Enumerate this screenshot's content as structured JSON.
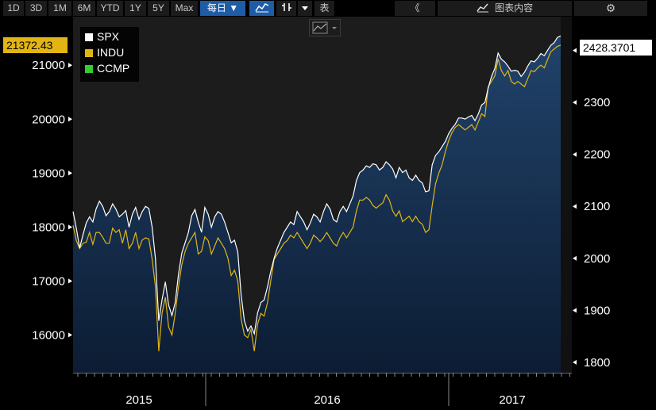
{
  "toolbar": {
    "ranges": [
      "1D",
      "3D",
      "1M",
      "6M",
      "YTD",
      "1Y",
      "5Y",
      "Max"
    ],
    "frequency": "每日 ▼",
    "table_label": "表",
    "collapse_label": "《",
    "chart_content_label": "图表内容"
  },
  "tags": {
    "left_value": "21372.43",
    "right_value": "2428.3701"
  },
  "colors": {
    "spx": "#ffffff",
    "indu": "#e3b512",
    "ccmp": "#33cc33",
    "fill_top": "#21436b",
    "fill_bottom": "#0c1c33",
    "plot_bg": "#1c1c1c",
    "accent": "#1f5ca8"
  },
  "chart_data": {
    "type": "line",
    "x_labels": [
      "2015",
      "2016",
      "2017"
    ],
    "left_axis": {
      "ticks": [
        16000,
        17000,
        18000,
        19000,
        20000,
        21000
      ],
      "range": [
        15300,
        21900
      ]
    },
    "right_axis": {
      "ticks": [
        1800,
        1900,
        2000,
        2100,
        2200,
        2300,
        2400
      ],
      "range": [
        1780,
        2465
      ]
    },
    "legend": [
      "SPX",
      "INDU",
      "CCMP"
    ],
    "series": [
      {
        "name": "SPX",
        "axis": "right",
        "values": [
          [
            0,
            2090
          ],
          [
            2,
            2058
          ],
          [
            4,
            2020
          ],
          [
            6,
            2045
          ],
          [
            8,
            2068
          ],
          [
            10,
            2080
          ],
          [
            12,
            2070
          ],
          [
            14,
            2095
          ],
          [
            16,
            2110
          ],
          [
            18,
            2100
          ],
          [
            20,
            2082
          ],
          [
            22,
            2090
          ],
          [
            24,
            2105
          ],
          [
            26,
            2095
          ],
          [
            28,
            2080
          ],
          [
            30,
            2085
          ],
          [
            32,
            2092
          ],
          [
            34,
            2060
          ],
          [
            36,
            2085
          ],
          [
            38,
            2098
          ],
          [
            40,
            2075
          ],
          [
            42,
            2090
          ],
          [
            44,
            2100
          ],
          [
            46,
            2096
          ],
          [
            48,
            2060
          ],
          [
            50,
            2000
          ],
          [
            52,
            1880
          ],
          [
            54,
            1920
          ],
          [
            56,
            1955
          ],
          [
            58,
            1910
          ],
          [
            60,
            1890
          ],
          [
            62,
            1915
          ],
          [
            64,
            1970
          ],
          [
            66,
            2010
          ],
          [
            68,
            2030
          ],
          [
            70,
            2050
          ],
          [
            72,
            2082
          ],
          [
            74,
            2094
          ],
          [
            76,
            2070
          ],
          [
            78,
            2050
          ],
          [
            80,
            2098
          ],
          [
            82,
            2085
          ],
          [
            84,
            2060
          ],
          [
            86,
            2080
          ],
          [
            88,
            2090
          ],
          [
            90,
            2085
          ],
          [
            92,
            2070
          ],
          [
            94,
            2050
          ],
          [
            96,
            2030
          ],
          [
            98,
            2035
          ],
          [
            100,
            2012
          ],
          [
            102,
            1930
          ],
          [
            104,
            1880
          ],
          [
            106,
            1860
          ],
          [
            108,
            1870
          ],
          [
            110,
            1855
          ],
          [
            112,
            1895
          ],
          [
            114,
            1915
          ],
          [
            116,
            1920
          ],
          [
            118,
            1945
          ],
          [
            120,
            1975
          ],
          [
            122,
            2000
          ],
          [
            124,
            2020
          ],
          [
            126,
            2035
          ],
          [
            128,
            2050
          ],
          [
            130,
            2060
          ],
          [
            132,
            2070
          ],
          [
            134,
            2065
          ],
          [
            136,
            2090
          ],
          [
            138,
            2080
          ],
          [
            140,
            2070
          ],
          [
            142,
            2055
          ],
          [
            144,
            2068
          ],
          [
            146,
            2085
          ],
          [
            148,
            2080
          ],
          [
            150,
            2070
          ],
          [
            152,
            2090
          ],
          [
            154,
            2105
          ],
          [
            156,
            2095
          ],
          [
            158,
            2075
          ],
          [
            160,
            2070
          ],
          [
            162,
            2090
          ],
          [
            164,
            2100
          ],
          [
            166,
            2090
          ],
          [
            168,
            2105
          ],
          [
            170,
            2120
          ],
          [
            172,
            2150
          ],
          [
            174,
            2165
          ],
          [
            176,
            2170
          ],
          [
            178,
            2178
          ],
          [
            180,
            2175
          ],
          [
            182,
            2182
          ],
          [
            184,
            2180
          ],
          [
            186,
            2170
          ],
          [
            188,
            2175
          ],
          [
            190,
            2186
          ],
          [
            192,
            2180
          ],
          [
            194,
            2172
          ],
          [
            196,
            2155
          ],
          [
            198,
            2175
          ],
          [
            200,
            2165
          ],
          [
            202,
            2170
          ],
          [
            204,
            2155
          ],
          [
            206,
            2150
          ],
          [
            208,
            2160
          ],
          [
            210,
            2150
          ],
          [
            212,
            2145
          ],
          [
            214,
            2128
          ],
          [
            216,
            2130
          ],
          [
            218,
            2180
          ],
          [
            220,
            2198
          ],
          [
            222,
            2205
          ],
          [
            224,
            2215
          ],
          [
            226,
            2225
          ],
          [
            228,
            2240
          ],
          [
            230,
            2250
          ],
          [
            232,
            2258
          ],
          [
            234,
            2270
          ],
          [
            236,
            2270
          ],
          [
            238,
            2268
          ],
          [
            240,
            2272
          ],
          [
            242,
            2275
          ],
          [
            244,
            2265
          ],
          [
            246,
            2278
          ],
          [
            248,
            2295
          ],
          [
            250,
            2300
          ],
          [
            252,
            2328
          ],
          [
            254,
            2350
          ],
          [
            256,
            2365
          ],
          [
            258,
            2395
          ],
          [
            260,
            2383
          ],
          [
            262,
            2378
          ],
          [
            264,
            2370
          ],
          [
            266,
            2360
          ],
          [
            268,
            2362
          ],
          [
            270,
            2360
          ],
          [
            272,
            2350
          ],
          [
            274,
            2358
          ],
          [
            276,
            2370
          ],
          [
            278,
            2380
          ],
          [
            280,
            2378
          ],
          [
            282,
            2385
          ],
          [
            284,
            2394
          ],
          [
            286,
            2390
          ],
          [
            288,
            2400
          ],
          [
            290,
            2410
          ],
          [
            292,
            2415
          ],
          [
            294,
            2425
          ],
          [
            296,
            2428
          ]
        ]
      },
      {
        "name": "INDU",
        "axis": "left",
        "values": [
          [
            0,
            18030
          ],
          [
            2,
            17750
          ],
          [
            4,
            17600
          ],
          [
            6,
            17700
          ],
          [
            8,
            17720
          ],
          [
            10,
            17900
          ],
          [
            12,
            17680
          ],
          [
            14,
            17900
          ],
          [
            16,
            17900
          ],
          [
            18,
            17810
          ],
          [
            20,
            17700
          ],
          [
            22,
            17700
          ],
          [
            24,
            17980
          ],
          [
            26,
            17900
          ],
          [
            28,
            17950
          ],
          [
            30,
            17700
          ],
          [
            32,
            17950
          ],
          [
            34,
            17600
          ],
          [
            36,
            17700
          ],
          [
            38,
            17900
          ],
          [
            40,
            17600
          ],
          [
            42,
            17760
          ],
          [
            44,
            17800
          ],
          [
            46,
            17780
          ],
          [
            48,
            17400
          ],
          [
            50,
            16900
          ],
          [
            52,
            15700
          ],
          [
            54,
            16400
          ],
          [
            56,
            16700
          ],
          [
            58,
            16150
          ],
          [
            60,
            16000
          ],
          [
            62,
            16400
          ],
          [
            64,
            16900
          ],
          [
            66,
            17300
          ],
          [
            68,
            17550
          ],
          [
            70,
            17700
          ],
          [
            72,
            17800
          ],
          [
            74,
            17900
          ],
          [
            76,
            17500
          ],
          [
            78,
            17550
          ],
          [
            80,
            17820
          ],
          [
            82,
            17750
          ],
          [
            84,
            17500
          ],
          [
            86,
            17650
          ],
          [
            88,
            17800
          ],
          [
            90,
            17700
          ],
          [
            92,
            17600
          ],
          [
            94,
            17420
          ],
          [
            96,
            17100
          ],
          [
            98,
            17200
          ],
          [
            100,
            17000
          ],
          [
            102,
            16300
          ],
          [
            104,
            16000
          ],
          [
            106,
            15950
          ],
          [
            108,
            16100
          ],
          [
            110,
            15700
          ],
          [
            112,
            16200
          ],
          [
            114,
            16400
          ],
          [
            116,
            16350
          ],
          [
            118,
            16600
          ],
          [
            120,
            17000
          ],
          [
            122,
            17400
          ],
          [
            124,
            17500
          ],
          [
            126,
            17600
          ],
          [
            128,
            17700
          ],
          [
            130,
            17750
          ],
          [
            132,
            17850
          ],
          [
            134,
            17800
          ],
          [
            136,
            17900
          ],
          [
            138,
            17800
          ],
          [
            140,
            17700
          ],
          [
            142,
            17600
          ],
          [
            144,
            17700
          ],
          [
            146,
            17850
          ],
          [
            148,
            17800
          ],
          [
            150,
            17730
          ],
          [
            152,
            17800
          ],
          [
            154,
            17900
          ],
          [
            156,
            17800
          ],
          [
            158,
            17700
          ],
          [
            160,
            17650
          ],
          [
            162,
            17800
          ],
          [
            164,
            17900
          ],
          [
            166,
            17800
          ],
          [
            168,
            17900
          ],
          [
            170,
            18000
          ],
          [
            172,
            18300
          ],
          [
            174,
            18500
          ],
          [
            176,
            18500
          ],
          [
            178,
            18550
          ],
          [
            180,
            18500
          ],
          [
            182,
            18400
          ],
          [
            184,
            18350
          ],
          [
            186,
            18400
          ],
          [
            188,
            18450
          ],
          [
            190,
            18600
          ],
          [
            192,
            18500
          ],
          [
            194,
            18300
          ],
          [
            196,
            18200
          ],
          [
            198,
            18300
          ],
          [
            200,
            18100
          ],
          [
            202,
            18150
          ],
          [
            204,
            18200
          ],
          [
            206,
            18100
          ],
          [
            208,
            18200
          ],
          [
            210,
            18100
          ],
          [
            212,
            18050
          ],
          [
            214,
            17900
          ],
          [
            216,
            17950
          ],
          [
            218,
            18400
          ],
          [
            220,
            18800
          ],
          [
            222,
            19000
          ],
          [
            224,
            19150
          ],
          [
            226,
            19400
          ],
          [
            228,
            19600
          ],
          [
            230,
            19750
          ],
          [
            232,
            19850
          ],
          [
            234,
            19900
          ],
          [
            236,
            19850
          ],
          [
            238,
            19800
          ],
          [
            240,
            19850
          ],
          [
            242,
            19900
          ],
          [
            244,
            19800
          ],
          [
            246,
            19950
          ],
          [
            248,
            20100
          ],
          [
            250,
            20050
          ],
          [
            252,
            20600
          ],
          [
            254,
            20700
          ],
          [
            256,
            20800
          ],
          [
            258,
            21120
          ],
          [
            260,
            20900
          ],
          [
            262,
            20800
          ],
          [
            264,
            20900
          ],
          [
            266,
            20700
          ],
          [
            268,
            20650
          ],
          [
            270,
            20700
          ],
          [
            272,
            20650
          ],
          [
            274,
            20600
          ],
          [
            276,
            20750
          ],
          [
            278,
            20900
          ],
          [
            280,
            20880
          ],
          [
            282,
            20950
          ],
          [
            284,
            21000
          ],
          [
            286,
            20950
          ],
          [
            288,
            21100
          ],
          [
            290,
            21250
          ],
          [
            292,
            21300
          ],
          [
            294,
            21350
          ],
          [
            296,
            21372
          ]
        ]
      }
    ]
  }
}
